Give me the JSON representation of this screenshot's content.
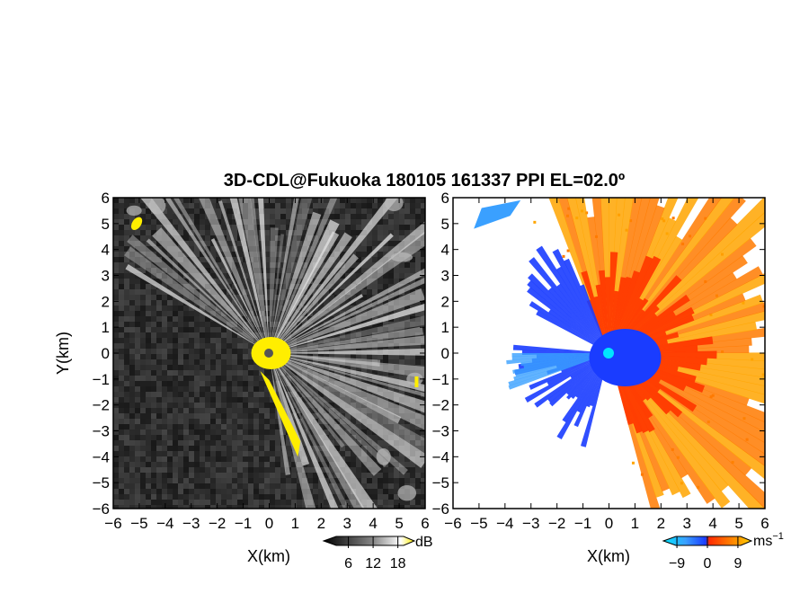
{
  "title": "3D-CDL@Fukuoka 180105 161337 PPI EL=02.0º",
  "chart_data": [
    {
      "type": "heatmap",
      "panel": "left",
      "quantity": "reflectivity",
      "xlabel": "X(km)",
      "ylabel": "Y(km)",
      "xlim": [
        -6,
        6
      ],
      "ylim": [
        -6,
        6
      ],
      "xticks": [
        "−6",
        "−5",
        "−4",
        "−3",
        "−2",
        "−1",
        "0",
        "1",
        "2",
        "3",
        "4",
        "5",
        "6"
      ],
      "yticks": [
        "6",
        "5",
        "4",
        "3",
        "2",
        "1",
        "0",
        "−1",
        "−2",
        "−3",
        "−4",
        "−5",
        "−6"
      ],
      "colorbar": {
        "unit": "dB",
        "ticks": [
          "6",
          "12",
          "18"
        ],
        "values": [
          6,
          12,
          18
        ],
        "range": [
          0,
          22
        ]
      },
      "colors": {
        "background": "#2a2a2a",
        "beam": "#e8e8e8",
        "highlight": "#ffee00"
      }
    },
    {
      "type": "heatmap",
      "panel": "right",
      "quantity": "radial velocity",
      "xlabel": "X(km)",
      "ylabel": "",
      "xlim": [
        -6,
        6
      ],
      "ylim": [
        -6,
        6
      ],
      "xticks": [
        "−6",
        "−5",
        "−4",
        "−3",
        "−2",
        "−1",
        "0",
        "1",
        "2",
        "3",
        "4",
        "5",
        "6"
      ],
      "yticks": [
        "6",
        "5",
        "4",
        "3",
        "2",
        "1",
        "0",
        "−1",
        "−2",
        "−3",
        "−4",
        "−5",
        "−6"
      ],
      "colorbar": {
        "unit": "ms",
        "unit_exp": "−1",
        "ticks": [
          "−9",
          "0",
          "9"
        ],
        "values": [
          -9,
          0,
          9
        ],
        "range": [
          -13,
          13
        ]
      },
      "colors": {
        "toward": "#1a3cff",
        "toward_light": "#3aa0ff",
        "away": "#ff3a00",
        "away_far": "#ffa500",
        "center": "#00e5ff"
      }
    }
  ]
}
